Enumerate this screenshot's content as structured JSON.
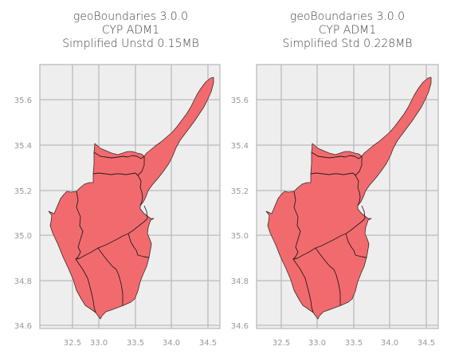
{
  "panels": [
    {
      "title_lines": [
        "geoBoundaries 3.0.0",
        "CYP ADM1",
        "Simplified Unstd 0.15MB"
      ],
      "x_ticks": [
        "32.5",
        "33.0",
        "33.5",
        "34.0",
        "34.5"
      ],
      "y_ticks": [
        "35.6",
        "35.4",
        "35.2",
        "35.0",
        "34.8",
        "34.6"
      ]
    },
    {
      "title_lines": [
        "geoBoundaries 3.0.0",
        "CYP ADM1",
        "Simplified Std 0.228MB"
      ],
      "x_ticks": [
        "32.5",
        "33.0",
        "33.5",
        "34.0",
        "34.5"
      ],
      "y_ticks": [
        "35.6",
        "35.4",
        "35.2",
        "35.0",
        "34.8",
        "34.6"
      ]
    }
  ],
  "colors": {
    "region_fill": "#f16b6e",
    "background": "#eeeeee",
    "grid": "#bbbbbb"
  }
}
